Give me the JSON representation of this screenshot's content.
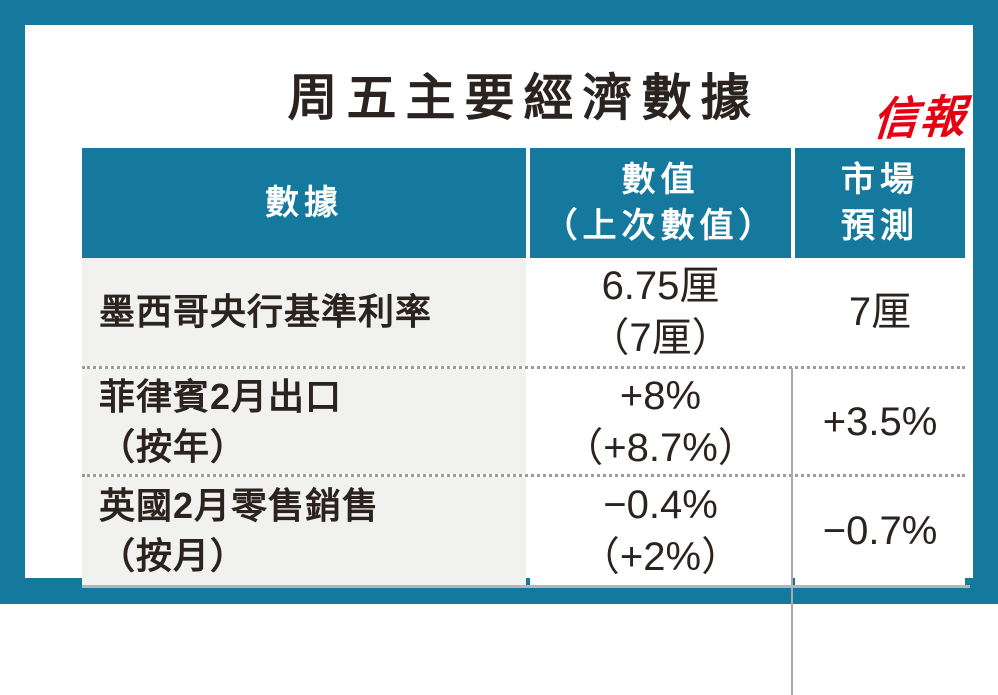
{
  "page": {
    "title": "周五主要經濟數據",
    "logo": "信報"
  },
  "colors": {
    "frame_teal": "#15799E",
    "header_teal": "#15799E",
    "logo_red": "#E60012",
    "indicator_column_bg": "#F1F1EF",
    "text": "#2A2320",
    "divider_gray": "#A9A9A9"
  },
  "table": {
    "headers": [
      {
        "label": [
          "數據"
        ]
      },
      {
        "label": [
          "數值",
          "（上次數值）"
        ]
      },
      {
        "label": [
          "市場",
          "預測"
        ]
      }
    ],
    "rows": [
      {
        "indicator": [
          "墨西哥央行基準利率"
        ],
        "value": [
          "6.75厘",
          "（7厘）"
        ],
        "forecast": "7厘"
      },
      {
        "indicator": [
          "菲律賓2月出口",
          "（按年）"
        ],
        "value": [
          "+8%",
          "（+8.7%）"
        ],
        "forecast": "+3.5%"
      },
      {
        "indicator": [
          "英國2月零售銷售",
          "（按月）"
        ],
        "value": [
          "−0.4%",
          "（+2%）"
        ],
        "forecast": "−0.7%"
      }
    ]
  },
  "chart_data": {
    "type": "table",
    "title": "周五主要經濟數據",
    "columns": [
      "數據",
      "數值（上次數值）",
      "市場預測"
    ],
    "rows": [
      [
        "墨西哥央行基準利率",
        "6.75厘（7厘）",
        "7厘"
      ],
      [
        "菲律賓2月出口（按年）",
        "+8%（+8.7%）",
        "+3.5%"
      ],
      [
        "英國2月零售銷售（按月）",
        "−0.4%（+2%）",
        "−0.7%"
      ]
    ]
  }
}
